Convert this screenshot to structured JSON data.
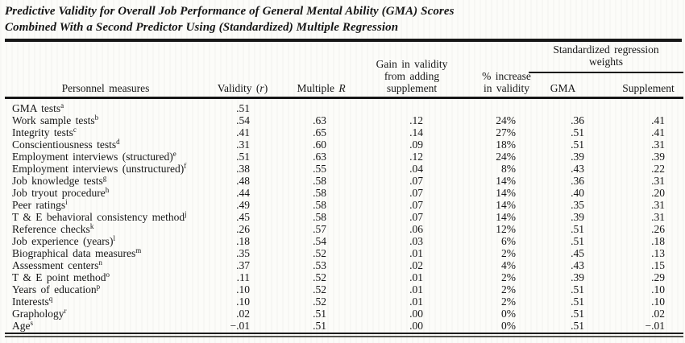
{
  "title": {
    "line1": "Predictive Validity for Overall Job Performance of General Mental Ability (GMA) Scores",
    "line2": "Combined With a Second Predictor Using (Standardized) Multiple Regression"
  },
  "header": {
    "personnel": "Personnel measures",
    "validity": {
      "pre": "Validity (",
      "var": "r",
      "post": ")"
    },
    "multiple": {
      "pre": "Multiple ",
      "var": "R"
    },
    "gain": "Gain in validity\nfrom adding\nsupplement",
    "increase": "% increase\nin validity",
    "spanner": "Standardized regression\nweights",
    "gma": "GMA",
    "supplement": "Supplement"
  },
  "rows": [
    {
      "measure": "GMA tests",
      "sup": "a",
      "validity": ".51",
      "multiple_r": "",
      "gain": "",
      "pct_increase": "",
      "gma_weight": "",
      "supplement_weight": ""
    },
    {
      "measure": "Work sample tests",
      "sup": "b",
      "validity": ".54",
      "multiple_r": ".63",
      "gain": ".12",
      "pct_increase": "24%",
      "gma_weight": ".36",
      "supplement_weight": ".41"
    },
    {
      "measure": "Integrity tests",
      "sup": "c",
      "validity": ".41",
      "multiple_r": ".65",
      "gain": ".14",
      "pct_increase": "27%",
      "gma_weight": ".51",
      "supplement_weight": ".41"
    },
    {
      "measure": "Conscientiousness tests",
      "sup": "d",
      "validity": ".31",
      "multiple_r": ".60",
      "gain": ".09",
      "pct_increase": "18%",
      "gma_weight": ".51",
      "supplement_weight": ".31"
    },
    {
      "measure": "Employment interviews (structured)",
      "sup": "e",
      "validity": ".51",
      "multiple_r": ".63",
      "gain": ".12",
      "pct_increase": "24%",
      "gma_weight": ".39",
      "supplement_weight": ".39"
    },
    {
      "measure": "Employment interviews (unstructured)",
      "sup": "f",
      "validity": ".38",
      "multiple_r": ".55",
      "gain": ".04",
      "pct_increase": "8%",
      "gma_weight": ".43",
      "supplement_weight": ".22"
    },
    {
      "measure": "Job knowledge tests",
      "sup": "g",
      "validity": ".48",
      "multiple_r": ".58",
      "gain": ".07",
      "pct_increase": "14%",
      "gma_weight": ".36",
      "supplement_weight": ".31"
    },
    {
      "measure": "Job tryout procedure",
      "sup": "h",
      "validity": ".44",
      "multiple_r": ".58",
      "gain": ".07",
      "pct_increase": "14%",
      "gma_weight": ".40",
      "supplement_weight": ".20"
    },
    {
      "measure": "Peer ratings",
      "sup": "i",
      "validity": ".49",
      "multiple_r": ".58",
      "gain": ".07",
      "pct_increase": "14%",
      "gma_weight": ".35",
      "supplement_weight": ".31"
    },
    {
      "measure": "T & E behavioral consistency method",
      "sup": "j",
      "validity": ".45",
      "multiple_r": ".58",
      "gain": ".07",
      "pct_increase": "14%",
      "gma_weight": ".39",
      "supplement_weight": ".31"
    },
    {
      "measure": "Reference checks",
      "sup": "k",
      "validity": ".26",
      "multiple_r": ".57",
      "gain": ".06",
      "pct_increase": "12%",
      "gma_weight": ".51",
      "supplement_weight": ".26"
    },
    {
      "measure": "Job experience (years)",
      "sup": "l",
      "validity": ".18",
      "multiple_r": ".54",
      "gain": ".03",
      "pct_increase": "6%",
      "gma_weight": ".51",
      "supplement_weight": ".18"
    },
    {
      "measure": "Biographical data measures",
      "sup": "m",
      "validity": ".35",
      "multiple_r": ".52",
      "gain": ".01",
      "pct_increase": "2%",
      "gma_weight": ".45",
      "supplement_weight": ".13"
    },
    {
      "measure": "Assessment centers",
      "sup": "n",
      "validity": ".37",
      "multiple_r": ".53",
      "gain": ".02",
      "pct_increase": "4%",
      "gma_weight": ".43",
      "supplement_weight": ".15"
    },
    {
      "measure": "T & E point method",
      "sup": "o",
      "validity": ".11",
      "multiple_r": ".52",
      "gain": ".01",
      "pct_increase": "2%",
      "gma_weight": ".39",
      "supplement_weight": ".29"
    },
    {
      "measure": "Years of education",
      "sup": "p",
      "validity": ".10",
      "multiple_r": ".52",
      "gain": ".01",
      "pct_increase": "2%",
      "gma_weight": ".51",
      "supplement_weight": ".10"
    },
    {
      "measure": "Interests",
      "sup": "q",
      "validity": ".10",
      "multiple_r": ".52",
      "gain": ".01",
      "pct_increase": "2%",
      "gma_weight": ".51",
      "supplement_weight": ".10"
    },
    {
      "measure": "Graphology",
      "sup": "r",
      "validity": ".02",
      "multiple_r": ".51",
      "gain": ".00",
      "pct_increase": "0%",
      "gma_weight": ".51",
      "supplement_weight": ".02"
    },
    {
      "measure": "Age",
      "sup": "s",
      "validity": "−.01",
      "multiple_r": ".51",
      "gain": ".00",
      "pct_increase": "0%",
      "gma_weight": ".51",
      "supplement_weight": "−.01"
    }
  ],
  "colors": {
    "text": "#161616",
    "rule": "#171717",
    "background": "#fcfcf9"
  }
}
